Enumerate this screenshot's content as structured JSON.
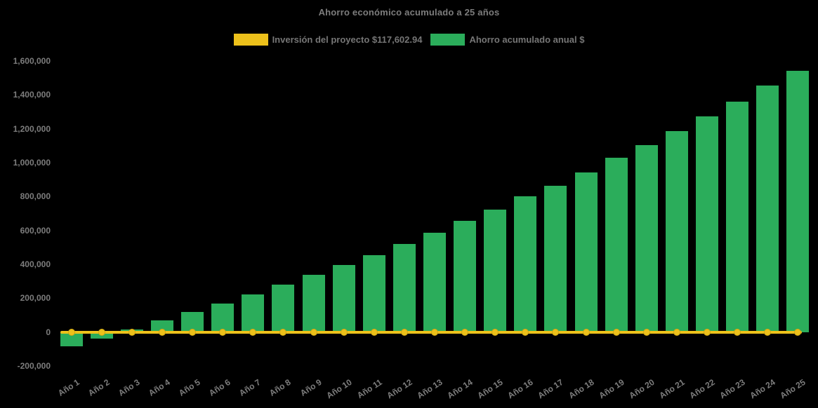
{
  "title": "Ahorro económico acumulado a 25 años",
  "legend": [
    {
      "label": "Inversión del proyecto $117,602.94",
      "color": "#EDC11B"
    },
    {
      "label": "Ahorro acumulado anual $",
      "color": "#2BAD5B"
    }
  ],
  "colors": {
    "background": "#000000",
    "text": "#7D7D7D",
    "investment_yellow": "#EDC11B",
    "savings_green": "#2BAD5B"
  },
  "chart_data": {
    "type": "bar",
    "title": "Ahorro económico acumulado a 25 años",
    "categories": [
      "Año 1",
      "Año 2",
      "Año 3",
      "Año 4",
      "Año 5",
      "Año 6",
      "Año 7",
      "Año 8",
      "Año 9",
      "Año 10",
      "Año 11",
      "Año 12",
      "Año 13",
      "Año 14",
      "Año 15",
      "Año 16",
      "Año 17",
      "Año 18",
      "Año 19",
      "Año 20",
      "Año 21",
      "Año 22",
      "Año 23",
      "Año 24",
      "Año 25"
    ],
    "series": [
      {
        "name": "Inversión del proyecto $117,602.94",
        "type": "line",
        "color": "#EDC11B",
        "marker": "circle",
        "plotted_y": 0,
        "investment_amount": 117602.94
      },
      {
        "name": "Ahorro acumulado anual $",
        "type": "bar",
        "color": "#2BAD5B",
        "values": [
          -84000,
          -39000,
          17000,
          67000,
          117000,
          169000,
          221000,
          279000,
          337000,
          396000,
          455000,
          519000,
          587000,
          658000,
          723000,
          800000,
          865000,
          944000,
          1030000,
          1104000,
          1187000,
          1274000,
          1360000,
          1455000,
          1543000
        ]
      }
    ],
    "ylim": [
      -200000,
      1600000
    ],
    "y_ticks": [
      {
        "label": "1,600,000",
        "value": 1600000
      },
      {
        "label": "1,400,000",
        "value": 1400000
      },
      {
        "label": "1,200,000",
        "value": 1200000
      },
      {
        "label": "1,000,000",
        "value": 1000000
      },
      {
        "label": "800,000",
        "value": 800000
      },
      {
        "label": "600,000",
        "value": 600000
      },
      {
        "label": "400,000",
        "value": 400000
      },
      {
        "label": "200,000",
        "value": 200000
      },
      {
        "label": "0",
        "value": 0
      },
      {
        "label": "-200,000",
        "value": -200000
      }
    ],
    "xlabel": "",
    "ylabel": "",
    "grid": false,
    "legend_position": "top"
  }
}
